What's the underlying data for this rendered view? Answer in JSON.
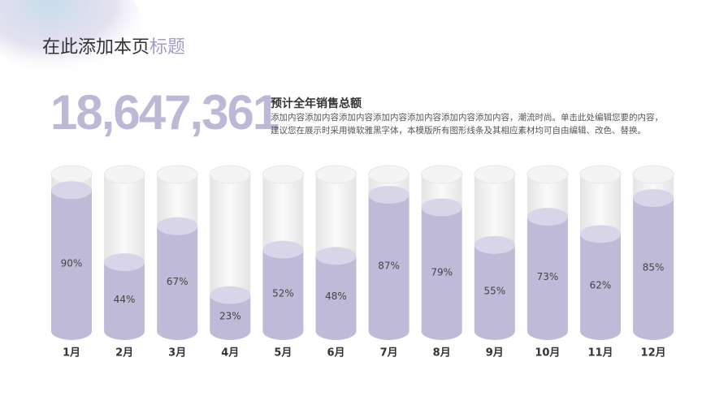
{
  "slide": {
    "title_main": "在此添加本页",
    "title_accent": "标题",
    "big_number": "18,647,361",
    "heading": "预计全年销售总额",
    "body": "添加内容添加内容添加内容添加内容添加内容添加内容添加内容，潮流时尚。单击此处编辑您要的内容，建议您在展示时采用微软雅黑字体，本模版所有图形线条及其相应素材均可自由编辑、改色、替换。"
  },
  "chart_data": {
    "type": "bar",
    "categories": [
      "1月",
      "2月",
      "3月",
      "4月",
      "5月",
      "6月",
      "7月",
      "8月",
      "9月",
      "10月",
      "11月",
      "12月"
    ],
    "values": [
      90,
      44,
      67,
      23,
      52,
      48,
      87,
      79,
      55,
      73,
      62,
      85
    ],
    "value_labels": [
      "90%",
      "44%",
      "67%",
      "23%",
      "52%",
      "48%",
      "87%",
      "79%",
      "55%",
      "73%",
      "62%",
      "85%"
    ],
    "color": "#bfbad8",
    "ylim": [
      0,
      100
    ]
  }
}
